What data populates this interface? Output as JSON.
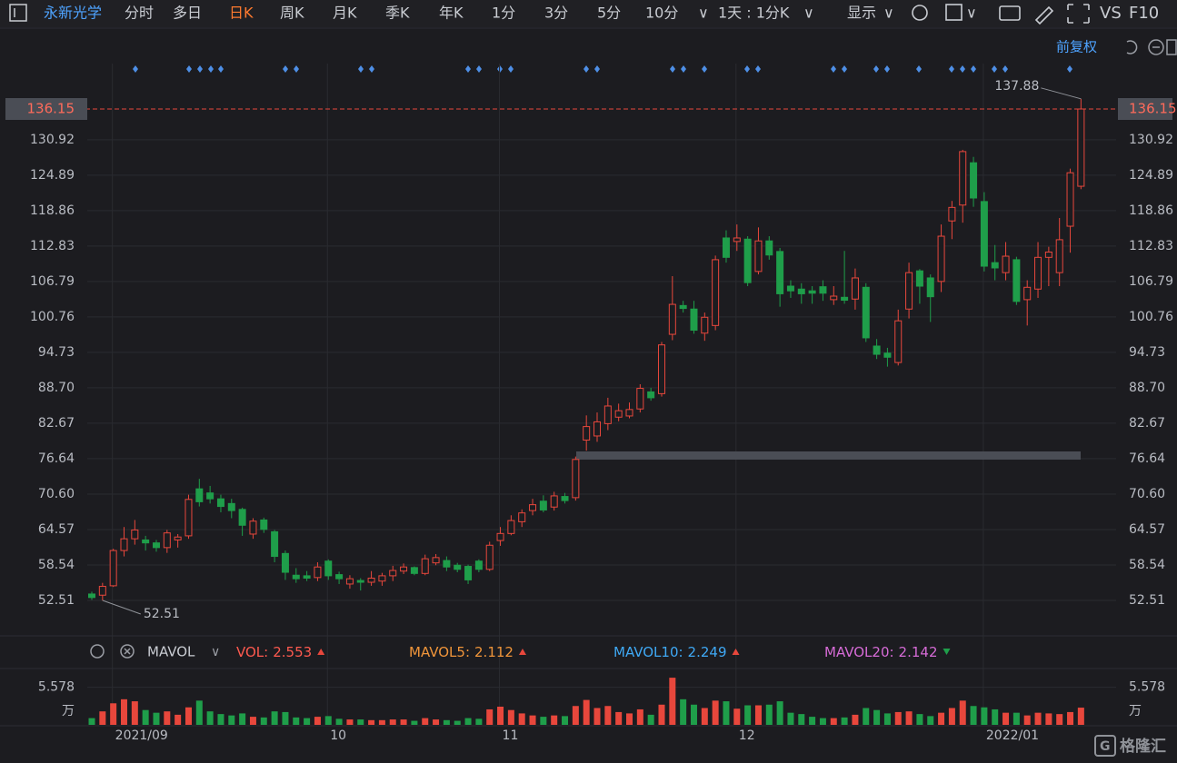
{
  "toolbar": {
    "stock": "永新光学",
    "tabs": [
      "分时",
      "多日",
      "日K",
      "周K",
      "月K",
      "季K",
      "年K",
      "1分",
      "3分",
      "5分",
      "10分"
    ],
    "active_tab": 2,
    "period": "1天 : 1分K",
    "display": "显示",
    "vs": "VS",
    "f10": "F10",
    "adjust": "前复权"
  },
  "chart_data": [
    {
      "type": "candlestick",
      "up_color": "#e8473c",
      "down_color": "#1f9e4a",
      "grid": true,
      "ylim": [
        46.79,
        143.88
      ],
      "yticks": [
        52.51,
        58.54,
        64.57,
        {
          "value": 70.6,
          "label": "70.60"
        },
        76.64,
        82.67,
        {
          "value": 88.7,
          "label": "88.70"
        },
        94.73,
        100.76,
        106.79,
        112.83,
        118.86,
        124.89,
        130.92
      ],
      "x_labels": [
        {
          "index": 2,
          "label": "2021/09"
        },
        {
          "index": 22,
          "label": "10"
        },
        {
          "index": 38,
          "label": "11"
        },
        {
          "index": 60,
          "label": "12"
        },
        {
          "index": 83,
          "label": "2022/01"
        }
      ],
      "open": [
        53.6,
        53.4,
        55,
        61,
        63,
        62.8,
        62.3,
        61.5,
        62.8,
        63.5,
        71.5,
        70.8,
        69.8,
        69,
        68,
        63.8,
        66.2,
        64.2,
        60.5,
        56.8,
        56.7,
        56.4,
        59.2,
        56.9,
        55.3,
        55.9,
        55.6,
        55.8,
        56.7,
        57.5,
        58.1,
        57.1,
        58.9,
        59.3,
        58.5,
        58.3,
        59.2,
        57.8,
        62.7,
        63.9,
        65.9,
        67.8,
        69.4,
        68.4,
        70.2,
        70,
        79.8,
        80.5,
        82.6,
        83.7,
        83.9,
        85.1,
        88,
        87.7,
        97.8,
        102.7,
        102.1,
        98,
        99.3,
        114.2,
        113.6,
        114,
        108.5,
        113.7,
        111.9,
        106,
        105.5,
        105.2,
        105.9,
        103.7,
        104.1,
        103.8,
        105.8,
        95.8,
        94.6,
        93,
        102.1,
        108.6,
        107.4,
        106.8,
        117.1,
        119.8,
        127,
        120.4,
        110,
        108.3,
        110.5,
        103.7,
        105.5,
        110.9,
        108.3,
        116.2,
        123
      ],
      "high": [
        54,
        55.5,
        61.3,
        65,
        66.2,
        63.5,
        62.8,
        64.5,
        63.8,
        70.5,
        73.2,
        72,
        70.5,
        69.8,
        68.3,
        66.5,
        66.6,
        64.5,
        61,
        58,
        57.5,
        59,
        59.5,
        57.4,
        56.8,
        56.3,
        57.5,
        57.2,
        58.4,
        58.8,
        58.3,
        60.3,
        60.4,
        60,
        58.9,
        58.6,
        59.5,
        62.5,
        65,
        67,
        68,
        69.8,
        70.4,
        71,
        70.8,
        77,
        84,
        84.5,
        87,
        86,
        86.2,
        89.3,
        88.7,
        96.5,
        107.7,
        103.5,
        103.5,
        101.5,
        111.2,
        115.5,
        116.5,
        114.5,
        116,
        114.5,
        112.5,
        107,
        106.5,
        106,
        107,
        106,
        112,
        109,
        106.5,
        97,
        95.5,
        102,
        110,
        108.9,
        108,
        116.5,
        120.5,
        129.2,
        128,
        122,
        113,
        113.5,
        111,
        107,
        113.5,
        112.7,
        117.6,
        126,
        137.88
      ],
      "low": [
        52.6,
        52.51,
        54.8,
        60,
        62,
        61,
        60.8,
        60.6,
        61.5,
        63,
        68.5,
        69,
        67.5,
        66.5,
        63.5,
        63,
        64,
        59,
        56,
        55.5,
        55.8,
        55.8,
        56,
        55.3,
        54.5,
        54.2,
        55,
        55,
        55.8,
        57,
        56.8,
        56.8,
        58.5,
        57.5,
        57.3,
        55.3,
        57.3,
        57.5,
        61.8,
        63.6,
        65,
        67,
        67.5,
        67.8,
        69,
        69.5,
        78,
        79.5,
        81.5,
        83,
        83.5,
        84.5,
        86.5,
        87.2,
        96.8,
        101.5,
        97.9,
        96.7,
        98.5,
        110,
        112,
        106,
        108,
        110.5,
        102.5,
        104,
        103,
        103,
        103.5,
        102.8,
        103,
        102,
        96.5,
        93.6,
        92.3,
        92.5,
        100.5,
        103,
        99.9,
        105,
        114,
        116.8,
        119.5,
        108.5,
        107,
        107,
        102.8,
        99.3,
        104,
        106,
        106,
        111.7,
        122.5
      ],
      "close": [
        53,
        54.9,
        61,
        63,
        64.5,
        62.3,
        61.5,
        64,
        63.3,
        69.7,
        69.3,
        69.8,
        68.5,
        67.8,
        65.3,
        66,
        64.6,
        60,
        57.3,
        56.2,
        56.3,
        58.2,
        56.7,
        56.2,
        56.2,
        55.6,
        56.3,
        56.7,
        57.6,
        58.2,
        57.1,
        59.6,
        59.8,
        58.2,
        57.8,
        56,
        57.8,
        61.9,
        63.9,
        66.1,
        67.4,
        68.8,
        67.9,
        70.3,
        69.5,
        76.5,
        82.1,
        82.9,
        85.6,
        84.8,
        85,
        88.6,
        87,
        96,
        102.9,
        102.2,
        98.5,
        100.7,
        110.5,
        110.9,
        114.2,
        106.6,
        113.7,
        111.3,
        104.7,
        105.2,
        104.7,
        104.8,
        104.8,
        104.3,
        103.6,
        107.4,
        97.2,
        94.4,
        93.9,
        100.1,
        108.3,
        106,
        104.2,
        114.5,
        119.4,
        128.9,
        121,
        109.4,
        109.1,
        111.1,
        103.4,
        105.8,
        110.9,
        111.8,
        113.9,
        125.3,
        136.15
      ]
    },
    {
      "type": "volume",
      "name": "MAVOL",
      "unit": "万",
      "ylim": [
        0,
        8.5
      ],
      "yticks": [
        5.578
      ],
      "values": [
        1,
        2,
        3.2,
        3.8,
        3.5,
        2.2,
        1.8,
        2,
        1.5,
        2.6,
        3.6,
        2,
        1.6,
        1.4,
        1.7,
        1.2,
        1.1,
        2,
        1.9,
        1.1,
        1,
        1.2,
        1.3,
        0.9,
        0.8,
        0.8,
        0.7,
        0.7,
        0.8,
        0.8,
        0.6,
        1,
        0.8,
        0.7,
        0.6,
        1,
        0.9,
        2.3,
        2.7,
        2.2,
        1.7,
        1.4,
        1.2,
        1.4,
        1.3,
        2.8,
        3.7,
        2.5,
        2.8,
        1.9,
        1.7,
        2.3,
        1.5,
        3,
        7,
        3.8,
        3,
        2.5,
        3.6,
        3.5,
        2.4,
        2.9,
        2.9,
        3,
        3.5,
        1.8,
        1.6,
        1.2,
        1,
        1,
        1.1,
        1.5,
        2.5,
        2.2,
        1.7,
        1.9,
        2,
        1.6,
        1.3,
        1.8,
        2.5,
        3.6,
        2.8,
        2.6,
        2.3,
        1.8,
        1.8,
        1.4,
        1.8,
        1.7,
        1.6,
        1.9,
        2.553
      ],
      "legend": [
        {
          "name": "VOL:",
          "value": 2.553,
          "color": "#ff5a4f",
          "trend": "up"
        },
        {
          "name": "MAVOL5:",
          "value": 2.112,
          "color": "#f0953a",
          "trend": "up"
        },
        {
          "name": "MAVOL10:",
          "value": 2.249,
          "color": "#3fa9f5",
          "trend": "up"
        },
        {
          "name": "MAVOL20:",
          "value": 2.142,
          "color": "#d66bd6",
          "trend": "down"
        }
      ]
    }
  ],
  "watermark": "格隆汇"
}
